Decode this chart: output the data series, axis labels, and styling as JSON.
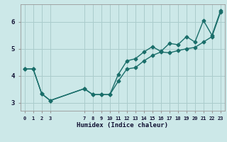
{
  "xlabel": "Humidex (Indice chaleur)",
  "background_color": "#cce8e8",
  "grid_color": "#aacccc",
  "line_color": "#1a6e6a",
  "xlim": [
    -0.5,
    23.5
  ],
  "ylim": [
    2.7,
    6.65
  ],
  "xticks": [
    0,
    1,
    2,
    3,
    7,
    8,
    9,
    10,
    11,
    12,
    13,
    14,
    15,
    16,
    17,
    18,
    19,
    20,
    21,
    22,
    23
  ],
  "yticks": [
    3,
    4,
    5,
    6
  ],
  "line1_x": [
    0,
    1,
    2,
    3,
    7,
    8,
    9,
    10,
    11,
    12,
    13,
    14,
    15,
    16,
    17,
    18,
    19,
    20,
    21,
    22,
    23
  ],
  "line1_y": [
    4.25,
    4.25,
    3.33,
    3.08,
    3.52,
    3.3,
    3.3,
    3.3,
    3.8,
    4.25,
    4.3,
    4.55,
    4.75,
    4.88,
    4.85,
    4.93,
    5.0,
    5.05,
    5.25,
    5.45,
    6.35
  ],
  "line2_x": [
    0,
    1,
    2,
    3,
    7,
    8,
    9,
    10,
    11,
    12,
    13,
    14,
    15,
    16,
    17,
    18,
    19,
    20,
    21,
    22,
    23
  ],
  "line2_y": [
    4.25,
    4.25,
    3.33,
    3.08,
    3.52,
    3.3,
    3.3,
    3.3,
    4.05,
    4.55,
    4.63,
    4.88,
    5.08,
    4.9,
    5.2,
    5.15,
    5.45,
    5.25,
    6.05,
    5.5,
    6.4
  ],
  "marker": "D",
  "marker_size": 2.5,
  "linewidth": 1.0
}
